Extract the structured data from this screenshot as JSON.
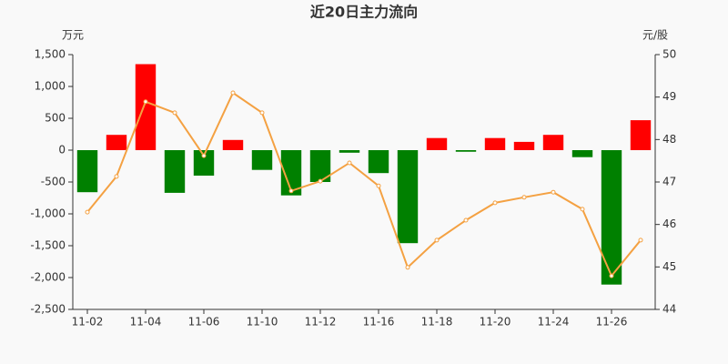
{
  "chart_data": {
    "type": "bar",
    "title": "近20日主力流向",
    "y_label": "万元",
    "y2_label": "元/股",
    "categories": [
      "11-02",
      null,
      "11-04",
      null,
      "11-06",
      null,
      "11-10",
      null,
      "11-12",
      null,
      "11-16",
      null,
      "11-18",
      null,
      "11-20",
      null,
      "11-24",
      null,
      "11-26",
      null
    ],
    "series": [
      {
        "type": "bar",
        "positive_color": "#ff0000",
        "negative_color": "#008000",
        "values": [
          -660,
          240,
          1350,
          -670,
          -400,
          160,
          -310,
          -710,
          -500,
          -40,
          -360,
          -1460,
          190,
          -25,
          190,
          130,
          240,
          -110,
          -2110,
          470
        ]
      },
      {
        "type": "line",
        "axis": "y2",
        "color": "#f4a142",
        "values": [
          46.29,
          47.13,
          48.89,
          48.63,
          47.62,
          49.1,
          48.63,
          46.79,
          47.02,
          47.45,
          46.91,
          44.99,
          45.63,
          46.1,
          46.51,
          46.64,
          46.76,
          46.36,
          44.79,
          45.63
        ]
      }
    ],
    "ylim": [
      -2500,
      1500
    ],
    "yticks": [
      {
        "value": -2500,
        "label": "-2,500"
      },
      {
        "value": -2000,
        "label": "-2,000"
      },
      {
        "value": -1500,
        "label": "-1,500"
      },
      {
        "value": -1000,
        "label": "-1,000"
      },
      -500,
      0,
      500,
      {
        "value": 1000,
        "label": "1,000"
      },
      {
        "value": 1500,
        "label": "1,500"
      }
    ],
    "y2lim": [
      44,
      50
    ],
    "y2ticks": [
      44,
      45,
      46,
      47,
      48,
      49,
      50
    ],
    "grid": false
  }
}
